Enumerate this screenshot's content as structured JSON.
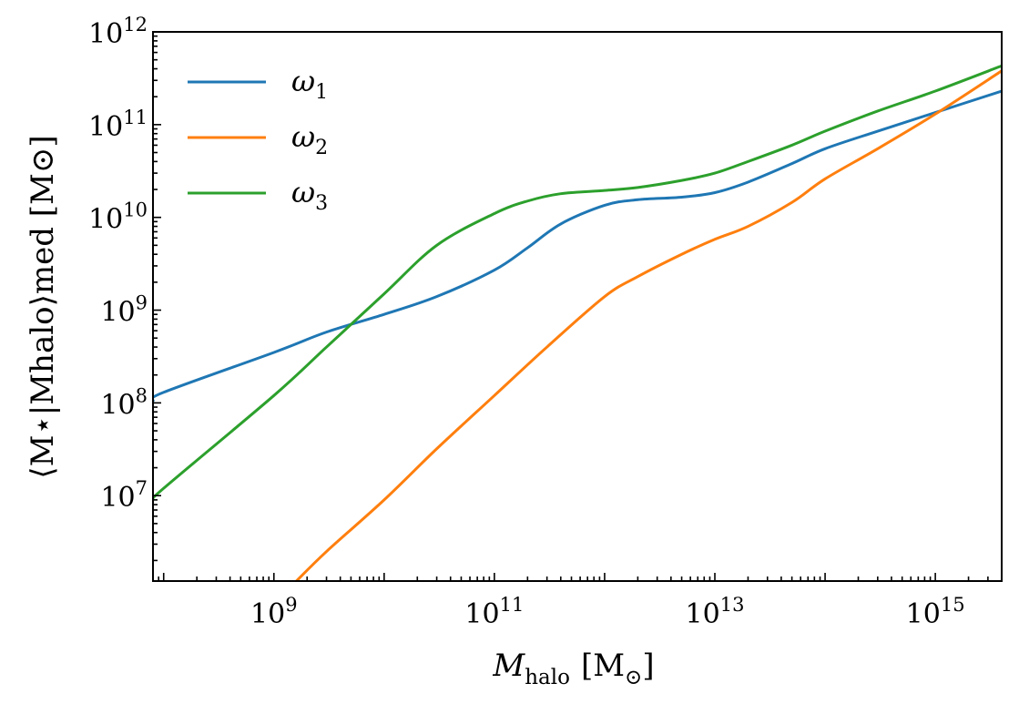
{
  "chart_data": {
    "type": "line",
    "xscale": "log",
    "yscale": "log",
    "xlim": [
      80000000.0,
      4000000000000000.0
    ],
    "ylim": [
      1200000.0,
      1000000000000.0
    ],
    "xlabel": {
      "main": "M",
      "sub": "halo",
      "unit": "[M",
      "unit_sub": "⊙",
      "unit_close": "]"
    },
    "ylabel": {
      "text": "⟨M⋆|Mhalo⟩med [M⊙]"
    },
    "x_ticks": [
      {
        "value": 1000000000.0,
        "base": "10",
        "exp": "9"
      },
      {
        "value": 100000000000.0,
        "base": "10",
        "exp": "11"
      },
      {
        "value": 10000000000000.0,
        "base": "10",
        "exp": "13"
      },
      {
        "value": 1000000000000000.0,
        "base": "10",
        "exp": "15"
      }
    ],
    "y_ticks": [
      {
        "value": 10000000.0,
        "base": "10",
        "exp": "7"
      },
      {
        "value": 100000000.0,
        "base": "10",
        "exp": "8"
      },
      {
        "value": 1000000000.0,
        "base": "10",
        "exp": "9"
      },
      {
        "value": 10000000000.0,
        "base": "10",
        "exp": "10"
      },
      {
        "value": 100000000000.0,
        "base": "10",
        "exp": "11"
      },
      {
        "value": 1000000000000.0,
        "base": "10",
        "exp": "12"
      }
    ],
    "legend_position": "top-left",
    "grid": false,
    "series": [
      {
        "name": "ω",
        "name_sub": "1",
        "color": "#1f77b4",
        "x": [
          80000000.0,
          100000000.0,
          1000000000.0,
          3000000000.0,
          10000000000.0,
          30000000000.0,
          100000000000.0,
          200000000000.0,
          400000000000.0,
          1000000000000.0,
          2000000000000.0,
          5000000000000.0,
          10000000000000.0,
          20000000000000.0,
          50000000000000.0,
          100000000000000.0,
          300000000000000.0,
          1000000000000000.0,
          4000000000000000.0
        ],
        "y": [
          105000000.0,
          130000000.0,
          350000000.0,
          580000000.0,
          900000000.0,
          1400000000.0,
          2700000000.0,
          4700000000.0,
          8500000000.0,
          13500000000.0,
          15500000000.0,
          16500000000.0,
          18500000000.0,
          24000000000.0,
          38000000000.0,
          55000000000.0,
          85000000000.0,
          135000000000.0,
          230000000000.0
        ]
      },
      {
        "name": "ω",
        "name_sub": "2",
        "color": "#ff7f0e",
        "x": [
          1600000000.0,
          3000000000.0,
          10000000000.0,
          30000000000.0,
          100000000000.0,
          300000000000.0,
          1000000000000.0,
          2000000000000.0,
          5000000000000.0,
          10000000000000.0,
          20000000000000.0,
          50000000000000.0,
          100000000000000.0,
          300000000000000.0,
          1000000000000000.0,
          4000000000000000.0
        ],
        "y": [
          1200000.0,
          2500000.0,
          9000000.0,
          32000000.0,
          120000000.0,
          400000000.0,
          1400000000.0,
          2300000000.0,
          4000000000.0,
          5800000000.0,
          8000000000.0,
          14500000000.0,
          26000000000.0,
          55000000000.0,
          130000000000.0,
          380000000000.0
        ]
      },
      {
        "name": "ω",
        "name_sub": "3",
        "color": "#2ca02c",
        "x": [
          80000000.0,
          100000000.0,
          1000000000.0,
          3000000000.0,
          10000000000.0,
          30000000000.0,
          100000000000.0,
          200000000000.0,
          400000000000.0,
          1000000000000.0,
          2000000000000.0,
          5000000000000.0,
          10000000000000.0,
          20000000000000.0,
          50000000000000.0,
          100000000000000.0,
          300000000000000.0,
          1000000000000000.0,
          4000000000000000.0
        ],
        "y": [
          9000000.0,
          12000000.0,
          120000000.0,
          400000000.0,
          1500000000.0,
          5000000000.0,
          11000000000.0,
          15000000000.0,
          18000000000.0,
          19500000000.0,
          21000000000.0,
          25000000000.0,
          30000000000.0,
          40000000000.0,
          60000000000.0,
          85000000000.0,
          140000000000.0,
          230000000000.0,
          430000000000.0
        ]
      }
    ]
  }
}
